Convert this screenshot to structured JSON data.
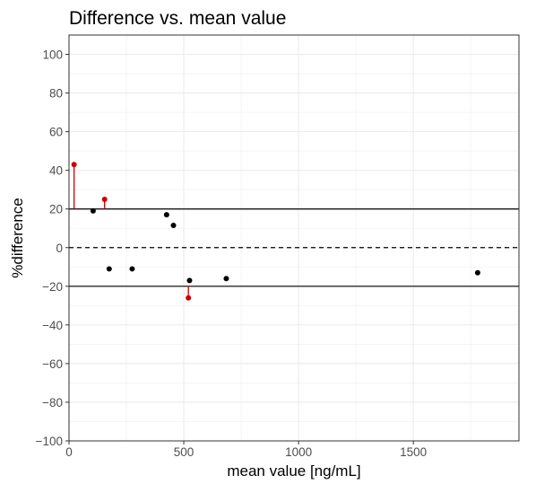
{
  "chart_data": {
    "type": "scatter",
    "title": "Difference vs. mean value",
    "xlabel": "mean value [ng/mL]",
    "ylabel": "%difference",
    "xlim": [
      0,
      1960
    ],
    "ylim": [
      -100,
      110
    ],
    "x_ticks": [
      0,
      500,
      1000,
      1500
    ],
    "y_ticks": [
      -100,
      -80,
      -60,
      -40,
      -20,
      0,
      20,
      40,
      60,
      80,
      100
    ],
    "grid": true,
    "reference_lines": [
      {
        "y": 20,
        "style": "solid"
      },
      {
        "y": 0,
        "style": "dashed"
      },
      {
        "y": -20,
        "style": "solid"
      }
    ],
    "colors": {
      "inside_limits": "#000000",
      "outside_limits": "#cc0000"
    },
    "points": [
      {
        "x": 22,
        "y": 43,
        "outside_limits": true
      },
      {
        "x": 105,
        "y": 19,
        "outside_limits": false
      },
      {
        "x": 155,
        "y": 25,
        "outside_limits": true
      },
      {
        "x": 175,
        "y": -11,
        "outside_limits": false
      },
      {
        "x": 275,
        "y": -11,
        "outside_limits": false
      },
      {
        "x": 425,
        "y": 17,
        "outside_limits": false
      },
      {
        "x": 455,
        "y": 11.5,
        "outside_limits": false
      },
      {
        "x": 520,
        "y": -26,
        "outside_limits": true
      },
      {
        "x": 525,
        "y": -17,
        "outside_limits": false
      },
      {
        "x": 685,
        "y": -16,
        "outside_limits": false
      },
      {
        "x": 1780,
        "y": -13,
        "outside_limits": false
      }
    ]
  }
}
